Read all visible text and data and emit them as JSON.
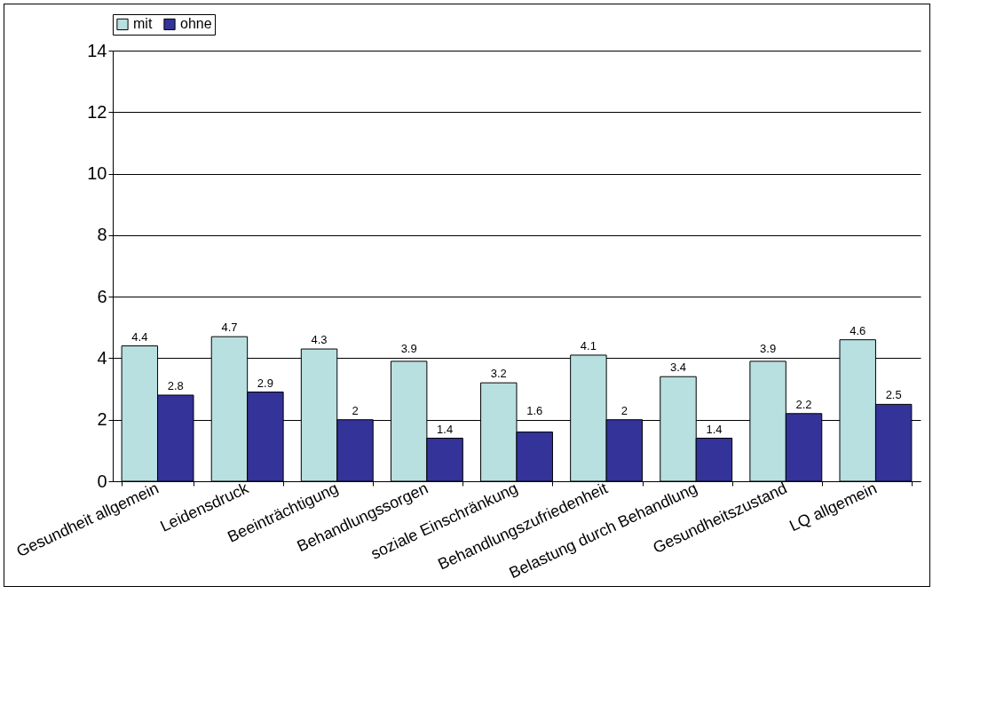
{
  "chart_data": {
    "type": "bar",
    "categories": [
      "Gesundheit allgemein",
      "Leidensdruck",
      "Beeinträchtigung",
      "Behandlungssorgen",
      "soziale Einschränkung",
      "Behandlungszufriedenheit",
      "Belastung durch Behandlung",
      "Gesundheitszustand",
      "LQ allgemein"
    ],
    "series": [
      {
        "name": "mit",
        "color": "#b8e0e0",
        "values": [
          4.4,
          4.7,
          4.3,
          3.9,
          3.2,
          4.1,
          3.4,
          3.9,
          4.6
        ]
      },
      {
        "name": "ohne",
        "color": "#333399",
        "values": [
          2.8,
          2.9,
          2,
          1.4,
          1.6,
          2,
          1.4,
          2.2,
          2.5
        ]
      }
    ],
    "ylim": [
      0,
      14
    ],
    "yticks": [
      0,
      2,
      4,
      6,
      8,
      10,
      12,
      14
    ],
    "grid": "y",
    "legend": "top",
    "data_labels": true
  }
}
